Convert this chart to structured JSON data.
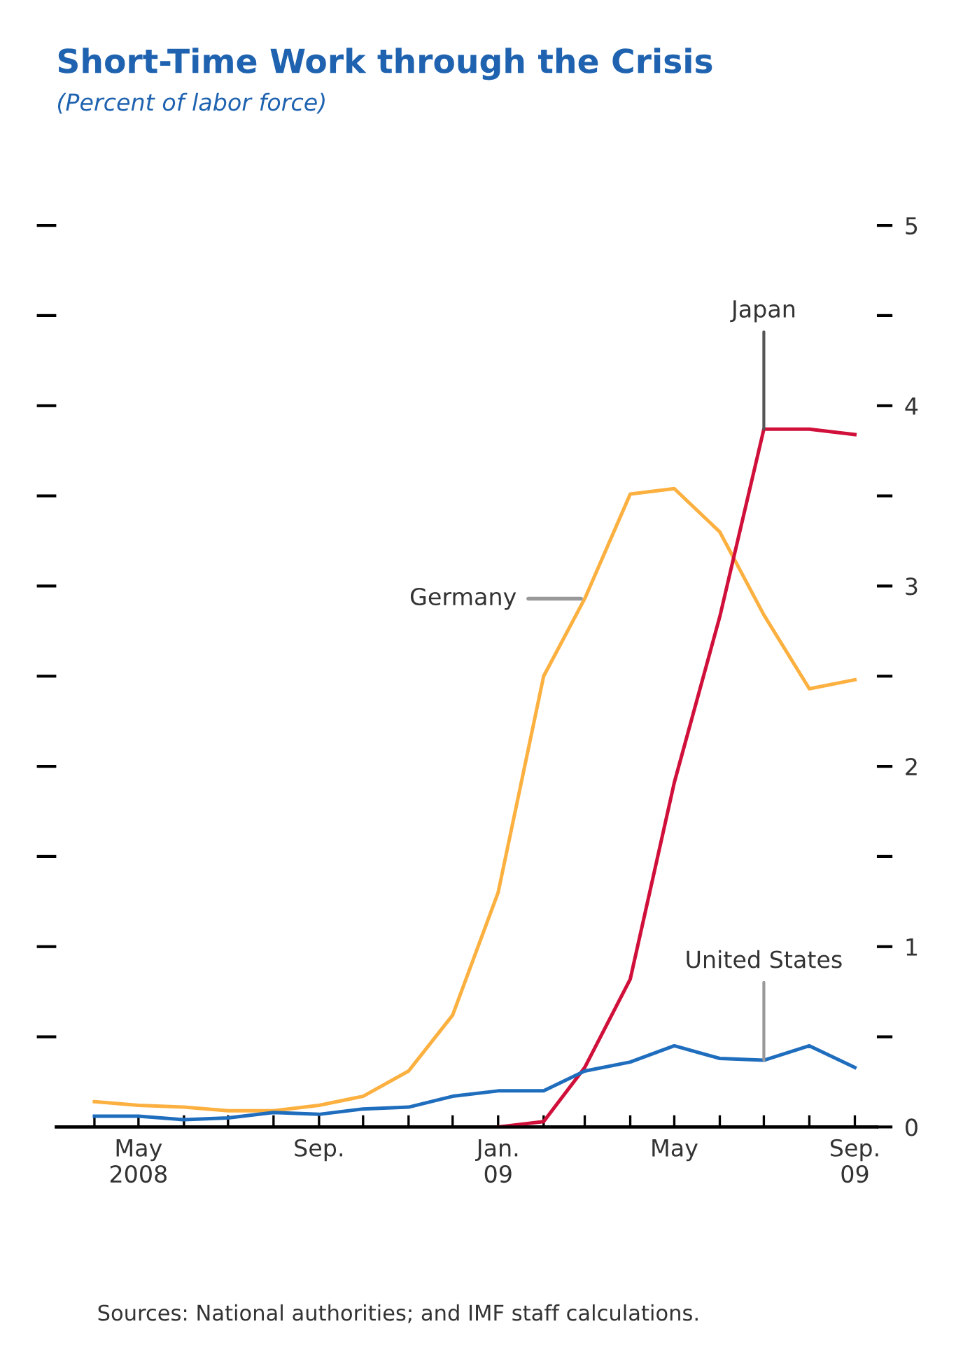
{
  "chart_data": {
    "type": "line",
    "title": "Short-Time Work through the Crisis",
    "subtitle": "(Percent of labor force)",
    "x": [
      "2008-04",
      "2008-05",
      "2008-06",
      "2008-07",
      "2008-08",
      "2008-09",
      "2008-10",
      "2008-11",
      "2008-12",
      "2009-01",
      "2009-02",
      "2009-03",
      "2009-04",
      "2009-05",
      "2009-06",
      "2009-07",
      "2009-08",
      "2009-09"
    ],
    "series": [
      {
        "name": "Germany",
        "color": "#fbb040",
        "axis": "y2",
        "values": [
          0.14,
          0.12,
          0.11,
          0.09,
          0.09,
          0.12,
          0.17,
          0.31,
          0.62,
          1.3,
          2.5,
          2.93,
          3.51,
          3.54,
          3.3,
          2.84,
          2.43,
          2.48
        ]
      },
      {
        "name": "Japan",
        "color": "#d0103a",
        "axis": "y2",
        "values": [
          null,
          null,
          null,
          null,
          null,
          null,
          null,
          null,
          null,
          0,
          0.03,
          0.33,
          0.82,
          1.91,
          2.83,
          3.87,
          3.87,
          3.84
        ]
      },
      {
        "name": "United States",
        "color": "#1f6dbd",
        "axis": "y2",
        "values": [
          0.06,
          0.06,
          0.04,
          0.05,
          0.08,
          0.07,
          0.1,
          0.11,
          0.17,
          0.2,
          0.2,
          0.31,
          0.36,
          0.45,
          0.38,
          0.37,
          0.45,
          0.33
        ]
      }
    ],
    "xlim": [
      "2008-03-06",
      "2009-09-16"
    ],
    "xticks": [
      {
        "value": "2008-04",
        "label": null
      },
      {
        "value": "2008-05",
        "label": "May\n2008"
      },
      {
        "value": "2008-06",
        "label": null
      },
      {
        "value": "2008-07",
        "label": null
      },
      {
        "value": "2008-08",
        "label": null
      },
      {
        "value": "2008-09",
        "label": "Sep."
      },
      {
        "value": "2008-10",
        "label": null
      },
      {
        "value": "2008-11",
        "label": null
      },
      {
        "value": "2008-12",
        "label": null
      },
      {
        "value": "2009-01",
        "label": "Jan.\n09"
      },
      {
        "value": "2009-02",
        "label": null
      },
      {
        "value": "2009-03",
        "label": null
      },
      {
        "value": "2009-04",
        "label": null
      },
      {
        "value": "2009-05",
        "label": "May"
      },
      {
        "value": "2009-06",
        "label": null
      },
      {
        "value": "2009-07",
        "label": null
      },
      {
        "value": "2009-08",
        "label": null
      },
      {
        "value": "2009-09",
        "label": "Sep.\n09"
      }
    ],
    "y2lim": [
      0,
      5
    ],
    "y2ticks": [
      0,
      {
        "value": 0.5,
        "label": null
      },
      1,
      {
        "value": 1.5,
        "label": null
      },
      2,
      {
        "value": 2.5,
        "label": null
      },
      3,
      {
        "value": 3.5,
        "label": null
      },
      4,
      {
        "value": 4.5,
        "label": null
      },
      5
    ],
    "grid": false,
    "legend": false,
    "marker": "none",
    "line_style": "solid",
    "annotations": [
      "Sources: National authorities; and IMF staff calculations."
    ]
  }
}
